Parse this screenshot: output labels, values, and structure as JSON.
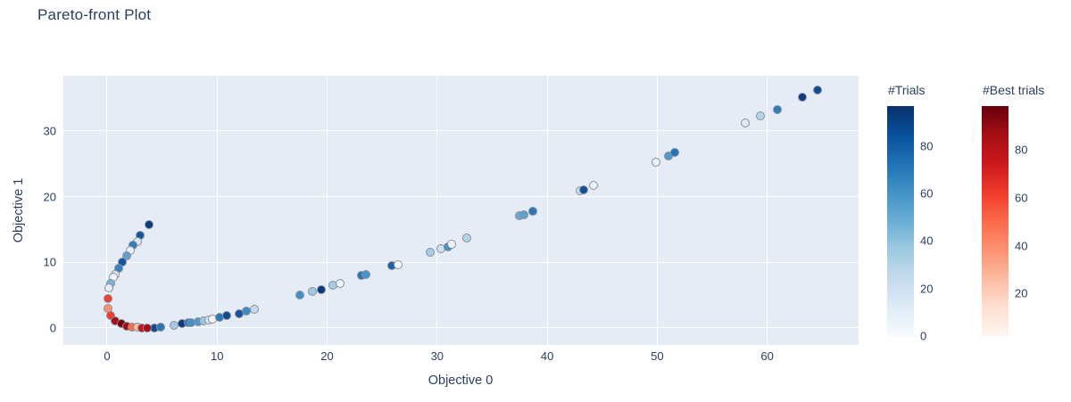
{
  "page": {
    "title": "Pareto-front Plot"
  },
  "chart_data": {
    "type": "scatter",
    "title": "Pareto-front Plot",
    "xlabel": "Objective 0",
    "ylabel": "Objective 1",
    "xlim": [
      -3.97,
      68.3
    ],
    "ylim": [
      -2.58,
      38.4
    ],
    "x_ticks": [
      0,
      10,
      20,
      30,
      40,
      50,
      60
    ],
    "y_ticks": [
      0,
      10,
      20,
      30
    ],
    "grid": true,
    "plot_bg": "#e5ecf6",
    "legend_position": "right-colorbars",
    "series": [
      {
        "name": "Trials",
        "colorscale": "Blues",
        "points": [
          [
            3.85,
            15.75,
            "#0d3b7e"
          ],
          [
            2.98,
            14.1,
            "#1357a0"
          ],
          [
            2.76,
            13.2,
            "#dae6f3"
          ],
          [
            2.38,
            12.6,
            "#2f7ebc"
          ],
          [
            2.08,
            11.85,
            "#e7eff9"
          ],
          [
            1.76,
            11.0,
            "#5ea1d0"
          ],
          [
            1.35,
            10.1,
            "#1357a0"
          ],
          [
            1.03,
            9.05,
            "#3182bd"
          ],
          [
            0.72,
            8.1,
            "#dce8f4"
          ],
          [
            0.6,
            7.75,
            "#eff5fb"
          ],
          [
            0.35,
            6.85,
            "#74b2d8"
          ],
          [
            0.2,
            6.05,
            "#e3edf8"
          ],
          [
            4.3,
            0.06,
            "#10498f"
          ],
          [
            4.9,
            0.16,
            "#2676b8"
          ],
          [
            6.1,
            0.42,
            "#a3c9e5"
          ],
          [
            6.8,
            0.62,
            "#0b3a7c"
          ],
          [
            7.42,
            0.8,
            "#2676b8"
          ],
          [
            7.65,
            0.87,
            "#4292c6"
          ],
          [
            8.28,
            1.0,
            "#4d97ca"
          ],
          [
            8.8,
            1.12,
            "#9dc6e3"
          ],
          [
            9.28,
            1.28,
            "#d8e6f3"
          ],
          [
            9.58,
            1.38,
            "#f2f7fc"
          ],
          [
            10.2,
            1.62,
            "#2b79ba"
          ],
          [
            10.85,
            1.85,
            "#0d4a8f"
          ],
          [
            12.0,
            2.22,
            "#16549c"
          ],
          [
            12.65,
            2.55,
            "#3d8cc3"
          ],
          [
            13.4,
            2.85,
            "#c3d9ee"
          ],
          [
            17.5,
            5.05,
            "#4292c6"
          ],
          [
            18.7,
            5.55,
            "#9ec9e4"
          ],
          [
            19.45,
            5.9,
            "#0a3a7c"
          ],
          [
            20.5,
            6.45,
            "#a5cbe5"
          ],
          [
            21.15,
            6.72,
            "#edf4fa"
          ],
          [
            23.12,
            7.95,
            "#2676b8"
          ],
          [
            23.5,
            8.1,
            "#4694c8"
          ],
          [
            25.85,
            9.45,
            "#1a63ac"
          ],
          [
            26.43,
            9.7,
            "#f5f9fd"
          ],
          [
            29.4,
            11.5,
            "#a6cbe5"
          ],
          [
            30.3,
            12.05,
            "#cfe0f1"
          ],
          [
            30.95,
            12.4,
            "#4292c6"
          ],
          [
            31.3,
            12.7,
            "#f2f7fc"
          ],
          [
            32.7,
            13.75,
            "#b5d4ea"
          ],
          [
            37.5,
            17.1,
            "#68aad3"
          ],
          [
            37.9,
            17.28,
            "#5ca3d0"
          ],
          [
            38.7,
            17.75,
            "#2b77b9"
          ],
          [
            43.0,
            20.85,
            "#c9dcef"
          ],
          [
            43.3,
            21.0,
            "#11519a"
          ],
          [
            44.2,
            21.65,
            "#eaf2f9"
          ],
          [
            49.9,
            25.3,
            "#e8f0f8"
          ],
          [
            51.0,
            26.2,
            "#5099cb"
          ],
          [
            51.6,
            26.7,
            "#2272b6"
          ],
          [
            58.0,
            31.2,
            "#dfeaf5"
          ],
          [
            59.4,
            32.3,
            "#b3d3e9"
          ],
          [
            60.9,
            33.3,
            "#2f7ebc"
          ],
          [
            63.2,
            35.15,
            "#0b3d80"
          ],
          [
            64.6,
            36.2,
            "#104c93"
          ]
        ]
      },
      {
        "name": "Best trials",
        "colorscale": "Reds",
        "points": [
          [
            0.08,
            4.45,
            "#f0402f"
          ],
          [
            0.1,
            3.05,
            "#fc9272"
          ],
          [
            0.3,
            1.95,
            "#ef3b2c"
          ],
          [
            0.76,
            1.15,
            "#a50f15"
          ],
          [
            1.3,
            0.62,
            "#73010f"
          ],
          [
            1.8,
            0.33,
            "#9e0d14"
          ],
          [
            2.28,
            0.16,
            "#fb6a4a"
          ],
          [
            2.74,
            0.07,
            "#fcbba1"
          ],
          [
            3.2,
            0.02,
            "#c4161c"
          ],
          [
            3.66,
            0.0,
            "#a50f15"
          ]
        ]
      }
    ],
    "colorbars": [
      {
        "title": "#Trials",
        "colors": [
          "#f7fbff",
          "#deebf7",
          "#c6dbef",
          "#9ecae1",
          "#6baed6",
          "#4292c6",
          "#2171b5",
          "#08519c",
          "#08306b"
        ],
        "ticks": [
          {
            "label": "0",
            "pos": 0.0
          },
          {
            "label": "20",
            "pos": 0.207
          },
          {
            "label": "40",
            "pos": 0.414
          },
          {
            "label": "60",
            "pos": 0.62
          },
          {
            "label": "80",
            "pos": 0.827
          }
        ]
      },
      {
        "title": "#Best trials",
        "colors": [
          "#fff5f0",
          "#fee0d2",
          "#fcbba1",
          "#fc9272",
          "#fb6a4a",
          "#ef3b2c",
          "#cb181d",
          "#a50f15",
          "#67000d"
        ],
        "ticks": [
          {
            "label": "20",
            "pos": 0.185
          },
          {
            "label": "40",
            "pos": 0.393
          },
          {
            "label": "60",
            "pos": 0.602
          },
          {
            "label": "80",
            "pos": 0.81
          }
        ]
      }
    ]
  }
}
